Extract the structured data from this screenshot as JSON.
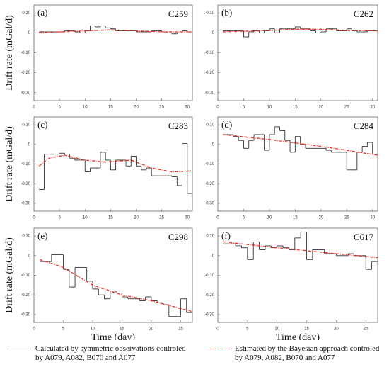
{
  "chart_data": [
    {
      "type": "line",
      "panel": "(a)",
      "title": "C259",
      "ylabel": "Drift rate (mGal/d)",
      "xlim": [
        0,
        31
      ],
      "xticks": [
        0,
        5,
        10,
        15,
        20,
        25,
        30
      ],
      "ylim": [
        -0.34,
        0.14
      ],
      "yticks": [
        {
          "value": 0.1,
          "label": "0.10"
        },
        0,
        {
          "value": -0.1,
          "label": "-0.10"
        },
        {
          "value": -0.2,
          "label": "-0.20"
        },
        {
          "value": -0.3,
          "label": "-0.30"
        }
      ],
      "series": [
        {
          "name": "Calculated by symmetric observations controled by A079, A082, B070 and A077",
          "color": "#333333",
          "drawstyle": "steps",
          "x": [
            1,
            2,
            3,
            4,
            5,
            6,
            7,
            8,
            9,
            10,
            11,
            12,
            13,
            14,
            15,
            16,
            17,
            18,
            19,
            20,
            21,
            22,
            23,
            24,
            25,
            26,
            27,
            28,
            29,
            30
          ],
          "values": [
            0.005,
            0.005,
            0.005,
            0.005,
            0.005,
            0.01,
            0.01,
            0.005,
            0.0,
            0.01,
            0.035,
            0.03,
            0.035,
            0.025,
            0.02,
            0.01,
            0.01,
            0.01,
            0.01,
            0.005,
            0.005,
            0.005,
            0.01,
            0.01,
            0.005,
            0.0,
            -0.005,
            0.0,
            0.01,
            0.005
          ]
        },
        {
          "name": "Estimated by the Bayesian approach controled by A079, A082, B070 and A077",
          "color": "#e8312a",
          "drawstyle": "line",
          "x": [
            1,
            5,
            10,
            15,
            20,
            25,
            31
          ],
          "values": [
            0.0,
            0.005,
            0.01,
            0.015,
            0.01,
            0.005,
            0.005
          ]
        }
      ]
    },
    {
      "type": "line",
      "panel": "(b)",
      "title": "C262",
      "xlim": [
        0,
        31
      ],
      "xticks": [
        0,
        5,
        10,
        15,
        20,
        25,
        30
      ],
      "ylim": [
        -0.34,
        0.14
      ],
      "yticks": [
        {
          "value": 0.1,
          "label": "0.10"
        },
        0,
        {
          "value": -0.1,
          "label": "-0.10"
        },
        {
          "value": -0.2,
          "label": "-0.20"
        },
        {
          "value": -0.3,
          "label": "-0.30"
        }
      ],
      "series": [
        {
          "color": "#333333",
          "drawstyle": "steps",
          "x": [
            1,
            2,
            3,
            4,
            5,
            6,
            7,
            8,
            9,
            10,
            11,
            12,
            13,
            14,
            15,
            16,
            17,
            18,
            19,
            20,
            21,
            22,
            23,
            24,
            25,
            26,
            27,
            28,
            29,
            30
          ],
          "values": [
            0.01,
            0.01,
            0.01,
            0.01,
            -0.02,
            0.005,
            0.01,
            0.0,
            0.01,
            0.02,
            0.0,
            0.02,
            0.02,
            0.02,
            0.03,
            0.02,
            0.02,
            0.01,
            0.0,
            0.005,
            0.02,
            0.02,
            0.01,
            0.01,
            0.02,
            0.01,
            0.005,
            0.005,
            0.01,
            0.01
          ]
        },
        {
          "color": "#e8312a",
          "drawstyle": "line",
          "x": [
            1,
            5,
            10,
            15,
            20,
            25,
            31
          ],
          "values": [
            0.005,
            0.008,
            0.012,
            0.018,
            0.018,
            0.012,
            0.01
          ]
        }
      ]
    },
    {
      "type": "line",
      "panel": "(c)",
      "title": "C283",
      "ylabel": "Drift rate (mGal/d)",
      "xlim": [
        0,
        31
      ],
      "xticks": [
        0,
        5,
        10,
        15,
        20,
        25,
        30
      ],
      "ylim": [
        -0.34,
        0.14
      ],
      "yticks": [
        {
          "value": 0.1,
          "label": "0.10"
        },
        0,
        {
          "value": -0.1,
          "label": "-0.10"
        },
        {
          "value": -0.2,
          "label": "-0.20"
        },
        {
          "value": -0.3,
          "label": "-0.30"
        }
      ],
      "series": [
        {
          "color": "#333333",
          "drawstyle": "steps",
          "x": [
            1,
            2,
            3,
            4,
            5,
            6,
            7,
            8,
            9,
            10,
            11,
            12,
            13,
            14,
            15,
            16,
            17,
            18,
            19,
            20,
            21,
            22,
            23,
            24,
            25,
            26,
            27,
            28,
            29,
            30
          ],
          "values": [
            -0.23,
            -0.05,
            -0.05,
            -0.05,
            -0.045,
            -0.05,
            -0.07,
            -0.08,
            -0.08,
            -0.14,
            -0.12,
            -0.12,
            -0.04,
            -0.08,
            -0.13,
            -0.08,
            -0.08,
            -0.11,
            -0.06,
            -0.11,
            -0.13,
            -0.12,
            -0.16,
            -0.16,
            -0.16,
            -0.16,
            -0.165,
            -0.21,
            0.005,
            -0.25
          ]
        },
        {
          "color": "#e8312a",
          "drawstyle": "line",
          "x": [
            1,
            3,
            6,
            10,
            14,
            19,
            23,
            27,
            31
          ],
          "values": [
            -0.11,
            -0.07,
            -0.055,
            -0.08,
            -0.09,
            -0.08,
            -0.12,
            -0.14,
            -0.135
          ]
        }
      ]
    },
    {
      "type": "line",
      "panel": "(d)",
      "title": "C284",
      "xlim": [
        0,
        31
      ],
      "xticks": [
        0,
        5,
        10,
        15,
        20,
        25,
        30
      ],
      "ylim": [
        -0.34,
        0.14
      ],
      "yticks": [
        {
          "value": 0.1,
          "label": "0.10"
        },
        0,
        {
          "value": -0.1,
          "label": "-0.10"
        },
        {
          "value": -0.2,
          "label": "-0.20"
        },
        {
          "value": -0.3,
          "label": "-0.30"
        }
      ],
      "series": [
        {
          "color": "#333333",
          "drawstyle": "steps",
          "x": [
            1,
            2,
            3,
            4,
            5,
            6,
            7,
            8,
            9,
            10,
            11,
            12,
            13,
            14,
            15,
            16,
            17,
            18,
            19,
            20,
            21,
            22,
            23,
            24,
            25,
            26,
            27,
            28,
            29,
            30
          ],
          "values": [
            0.05,
            0.05,
            0.04,
            0.02,
            -0.02,
            0.02,
            0.05,
            0.05,
            -0.03,
            0.05,
            0.09,
            0.07,
            0.02,
            -0.04,
            0.04,
            0.0,
            -0.02,
            -0.02,
            -0.02,
            -0.02,
            -0.03,
            -0.04,
            -0.04,
            -0.04,
            -0.13,
            -0.13,
            -0.04,
            -0.01,
            0.01,
            -0.05
          ]
        },
        {
          "color": "#e8312a",
          "drawstyle": "line",
          "x": [
            1,
            10,
            20,
            25,
            31
          ],
          "values": [
            0.05,
            0.025,
            -0.01,
            -0.03,
            -0.055
          ]
        }
      ]
    },
    {
      "type": "line",
      "panel": "(e)",
      "title": "C298",
      "ylabel": "Drift rate (mGal/d)",
      "xlabel": "Time (day)",
      "xlim": [
        0,
        27
      ],
      "xticks": [
        0,
        5,
        10,
        15,
        20,
        25
      ],
      "ylim": [
        -0.34,
        0.14
      ],
      "yticks": [
        {
          "value": 0.1,
          "label": "0.10"
        },
        0,
        {
          "value": -0.1,
          "label": "-0.10"
        },
        {
          "value": -0.2,
          "label": "-0.20"
        },
        {
          "value": -0.3,
          "label": "-0.30"
        }
      ],
      "series": [
        {
          "color": "#333333",
          "drawstyle": "steps",
          "x": [
            1,
            2,
            3,
            4,
            5,
            6,
            7,
            8,
            9,
            10,
            11,
            12,
            13,
            14,
            15,
            16,
            17,
            18,
            19,
            20,
            21,
            22,
            23,
            24,
            25,
            26
          ],
          "values": [
            -0.03,
            -0.03,
            0.005,
            0.005,
            -0.07,
            -0.16,
            -0.06,
            -0.06,
            -0.13,
            -0.17,
            -0.2,
            -0.22,
            -0.18,
            -0.19,
            -0.21,
            -0.22,
            -0.22,
            -0.23,
            -0.21,
            -0.23,
            -0.24,
            -0.25,
            -0.31,
            -0.31,
            -0.22,
            -0.29
          ]
        },
        {
          "color": "#e8312a",
          "drawstyle": "line",
          "x": [
            1,
            5,
            10,
            15,
            20,
            27
          ],
          "values": [
            -0.02,
            -0.06,
            -0.15,
            -0.2,
            -0.23,
            -0.285
          ]
        }
      ]
    },
    {
      "type": "line",
      "panel": "(f)",
      "title": "C617",
      "xlabel": "Time (day)",
      "xlim": [
        0,
        27
      ],
      "xticks": [
        0,
        5,
        10,
        15,
        20,
        25
      ],
      "ylim": [
        -0.34,
        0.14
      ],
      "yticks": [
        {
          "value": 0.1,
          "label": "0.10"
        },
        0,
        {
          "value": -0.1,
          "label": "-0.10"
        },
        {
          "value": -0.2,
          "label": "-0.20"
        },
        {
          "value": -0.3,
          "label": "-0.30"
        }
      ],
      "series": [
        {
          "color": "#333333",
          "drawstyle": "steps",
          "x": [
            1,
            2,
            3,
            4,
            5,
            6,
            7,
            8,
            9,
            10,
            11,
            12,
            13,
            14,
            15,
            16,
            17,
            18,
            19,
            20,
            21,
            22,
            23,
            24,
            25,
            26
          ],
          "values": [
            0.06,
            0.06,
            0.05,
            0.04,
            -0.02,
            0.07,
            0.03,
            0.05,
            0.04,
            0.05,
            0.04,
            0.03,
            0.09,
            0.12,
            -0.02,
            0.03,
            0.03,
            0.01,
            0.01,
            0.0,
            0.0,
            0.01,
            0.0,
            0.0,
            -0.07,
            -0.03
          ]
        },
        {
          "color": "#e8312a",
          "drawstyle": "line",
          "x": [
            1,
            10,
            20,
            27
          ],
          "values": [
            0.07,
            0.04,
            0.01,
            -0.01
          ]
        }
      ]
    }
  ]
}
